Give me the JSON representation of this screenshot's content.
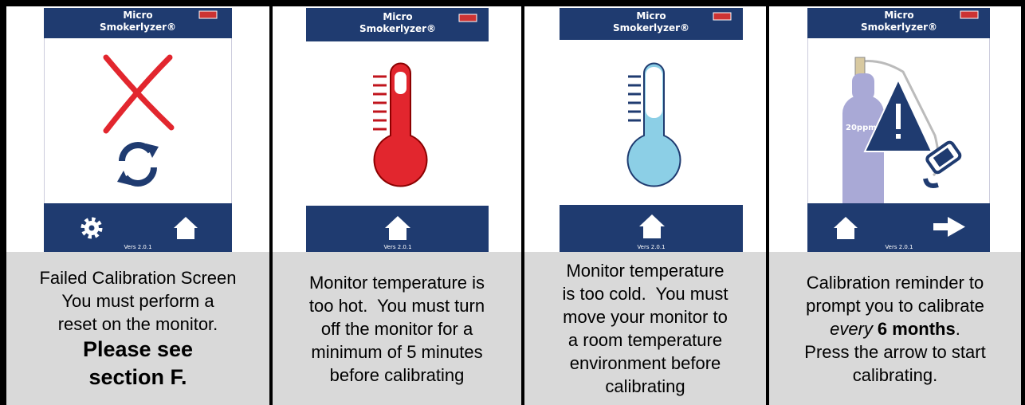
{
  "panels": [
    {
      "screen": {
        "brand": [
          "Micro",
          "Smokerlyzer®"
        ],
        "version": "Vers 2.0.1"
      },
      "caption": [
        [
          {
            "text": "Failed Calibration Screen"
          }
        ],
        [
          {
            "text": "You must perform a"
          }
        ],
        [
          {
            "text": "reset on the monitor."
          }
        ],
        [
          {
            "text": "Please see",
            "style": "heading"
          }
        ],
        [
          {
            "text": "section F.",
            "style": "heading"
          }
        ]
      ]
    },
    {
      "screen": {
        "brand": [
          "Micro",
          "Smokerlyzer®"
        ],
        "version": "Vers 2.0.1"
      },
      "caption": [
        [
          {
            "text": "Monitor temperature is"
          }
        ],
        [
          {
            "text": "too hot.  You must turn"
          }
        ],
        [
          {
            "text": "off the monitor for a"
          }
        ],
        [
          {
            "text": "minimum of 5 minutes"
          }
        ],
        [
          {
            "text": "before calibrating"
          }
        ]
      ]
    },
    {
      "screen": {
        "brand": [
          "Micro",
          "Smokerlyzer®"
        ],
        "version": "Vers 2.0.1"
      },
      "caption": [
        [
          {
            "text": "Monitor temperature"
          }
        ],
        [
          {
            "text": "is too cold.  You must"
          }
        ],
        [
          {
            "text": "move your monitor to"
          }
        ],
        [
          {
            "text": "a room temperature"
          }
        ],
        [
          {
            "text": "environment before"
          }
        ],
        [
          {
            "text": "calibrating"
          }
        ]
      ]
    },
    {
      "screen": {
        "brand": [
          "Micro",
          "Smokerlyzer®"
        ],
        "version": "Vers 2.0.1",
        "cylinder_label": "20ppm"
      },
      "caption": [
        [
          {
            "text": "Calibration reminder to"
          }
        ],
        [
          {
            "text": "prompt you to calibrate"
          }
        ],
        [
          {
            "text": "every",
            "style": "italic"
          },
          {
            "text": "6 months",
            "style": "bold"
          },
          {
            "text": "."
          }
        ],
        [
          {
            "text": "Press the arrow to start"
          }
        ],
        [
          {
            "text": "calibrating."
          }
        ]
      ]
    }
  ]
}
